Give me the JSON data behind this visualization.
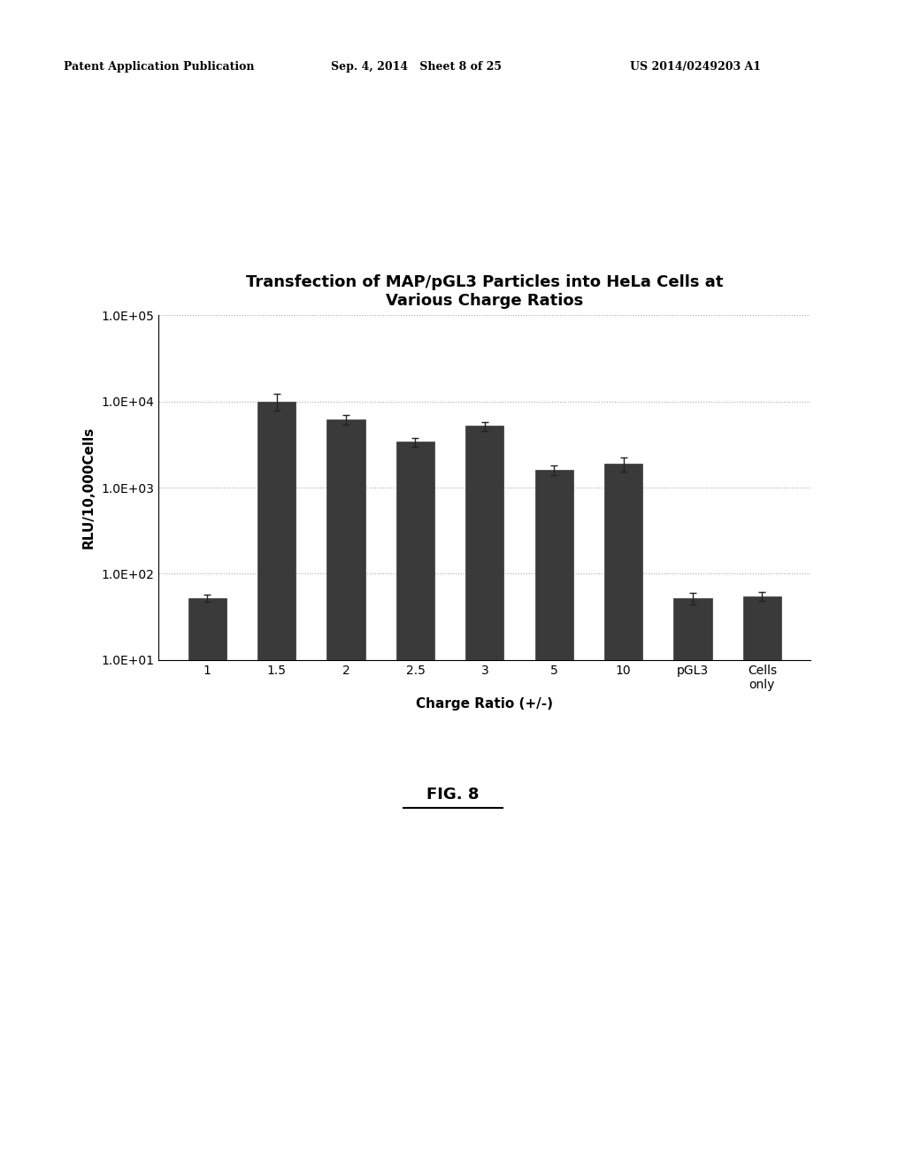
{
  "title_line1": "Transfection of MAP/pGL3 Particles into HeLa Cells at",
  "title_line2": "Various Charge Ratios",
  "xlabel": "Charge Ratio (+/-)",
  "ylabel": "RLU/10,000Cells",
  "categories": [
    "1",
    "1.5",
    "2",
    "2.5",
    "3",
    "5",
    "10",
    "pGL3",
    "Cells\nonly"
  ],
  "values": [
    52,
    10000,
    6200,
    3400,
    5200,
    1600,
    1900,
    52,
    55
  ],
  "errors": [
    5,
    2200,
    800,
    400,
    600,
    200,
    350,
    8,
    6
  ],
  "bar_color": "#3a3a3a",
  "background_color": "#ffffff",
  "ylim_log": [
    10,
    100000
  ],
  "yticks": [
    10,
    100,
    1000,
    10000,
    100000
  ],
  "ytick_labels": [
    "1.0E+01",
    "1.0E+02",
    "1.0E+03",
    "1.0E+04",
    "1.0E+05"
  ],
  "title_fontsize": 13,
  "axis_fontsize": 11,
  "tick_fontsize": 10,
  "grid_color": "#aaaaaa",
  "patent_text": "Patent Application Publication",
  "patent_date": "Sep. 4, 2014   Sheet 8 of 25",
  "patent_number": "US 2014/0249203 A1",
  "fig_label": "FIG. 8"
}
